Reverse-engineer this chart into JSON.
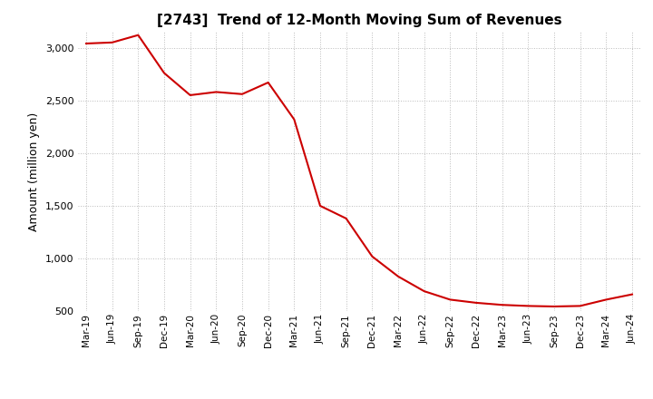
{
  "title": "[2743]  Trend of 12-Month Moving Sum of Revenues",
  "ylabel": "Amount (million yen)",
  "line_color": "#cc0000",
  "background_color": "#ffffff",
  "grid_color": "#bbbbbb",
  "x_labels": [
    "Mar-19",
    "Jun-19",
    "Sep-19",
    "Dec-19",
    "Mar-20",
    "Jun-20",
    "Sep-20",
    "Dec-20",
    "Mar-21",
    "Jun-21",
    "Sep-21",
    "Dec-21",
    "Mar-22",
    "Jun-22",
    "Sep-22",
    "Dec-22",
    "Mar-23",
    "Jun-23",
    "Sep-23",
    "Dec-23",
    "Mar-24",
    "Jun-24"
  ],
  "y_values": [
    3040,
    3050,
    3120,
    2760,
    2550,
    2580,
    2560,
    2670,
    2320,
    1500,
    1380,
    1020,
    830,
    690,
    610,
    580,
    560,
    550,
    545,
    550,
    610,
    660
  ],
  "ylim": [
    500,
    3150
  ],
  "yticks": [
    500,
    1000,
    1500,
    2000,
    2500,
    3000
  ]
}
